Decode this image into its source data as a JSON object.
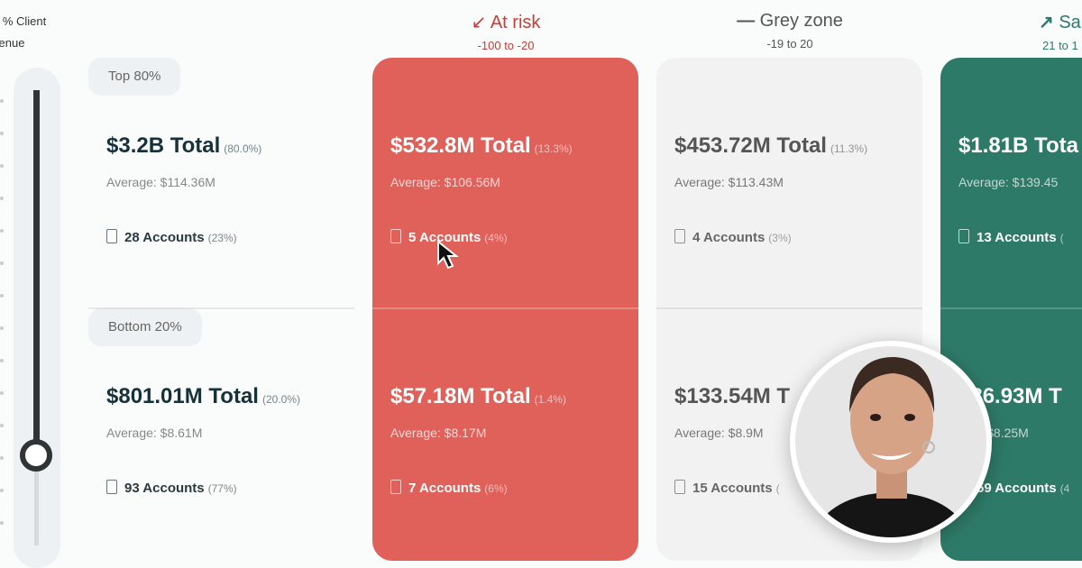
{
  "slider": {
    "label_line1": "% Client",
    "label_line2": "venue",
    "value_percent": 80
  },
  "segments": {
    "top": "Top 80%",
    "bottom": "Bottom 20%"
  },
  "columns": [
    {
      "key": "all",
      "top": {
        "total": "$3.2B Total",
        "pct": "(80.0%)",
        "avg": "Average: $114.36M",
        "accounts": "28 Accounts",
        "acc_pct": "(23%)"
      },
      "bottom": {
        "total": "$801.01M Total",
        "pct": "(20.0%)",
        "avg": "Average: $8.61M",
        "accounts": "93 Accounts",
        "acc_pct": "(77%)"
      }
    },
    {
      "key": "at-risk",
      "title": "At risk",
      "range": "-100 to -20",
      "icon": "arrow-down-left-icon",
      "color": "#e0605a",
      "top": {
        "total": "$532.8M Total",
        "pct": "(13.3%)",
        "avg": "Average: $106.56M",
        "accounts": "5 Accounts",
        "acc_pct": "(4%)"
      },
      "bottom": {
        "total": "$57.18M Total",
        "pct": "(1.4%)",
        "avg": "Average: $8.17M",
        "accounts": "7 Accounts",
        "acc_pct": "(6%)"
      }
    },
    {
      "key": "grey-zone",
      "title": "Grey zone",
      "range": "-19 to 20",
      "icon": "dash-icon",
      "color": "#f2f2f2",
      "top": {
        "total": "$453.72M Total",
        "pct": "(11.3%)",
        "avg": "Average: $113.43M",
        "accounts": "4 Accounts",
        "acc_pct": "(3%)"
      },
      "bottom": {
        "total": "$133.54M T",
        "pct": "",
        "avg": "Average: $8.9M",
        "accounts": "15 Accounts",
        "acc_pct": "("
      }
    },
    {
      "key": "safe",
      "title": "Sa",
      "range": "21 to 1",
      "icon": "arrow-up-right-icon",
      "color": "#2e7a68",
      "top": {
        "total": "$1.81B Tota",
        "pct": "",
        "avg": "Average: $139.45",
        "accounts": "13 Accounts",
        "acc_pct": "("
      },
      "bottom": {
        "total": "486.93M T",
        "pct": "",
        "avg": "age: $8.25M",
        "accounts": "59 Accounts",
        "acc_pct": "(4"
      }
    }
  ]
}
